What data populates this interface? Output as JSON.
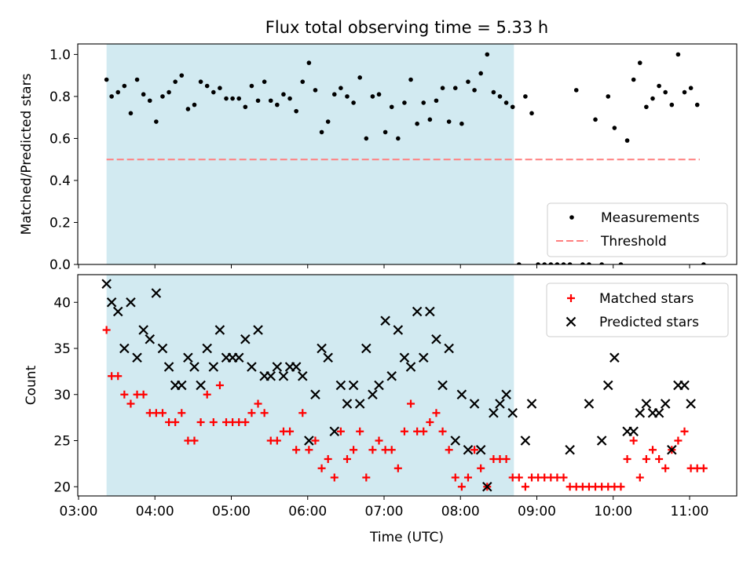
{
  "title": "Flux total observing time = 5.33 h",
  "colors": {
    "shade": "#add8e6",
    "measurement": "#000000",
    "threshold": "#ff7f7f",
    "matched": "#ff0000",
    "predicted": "#000000"
  },
  "chart_data": [
    {
      "type": "scatter",
      "ylabel": "Matched/Predicted stars",
      "ylim": [
        0,
        1.05
      ],
      "yticks": [
        0.0,
        0.2,
        0.4,
        0.6,
        0.8,
        1.0
      ],
      "ytick_labels": [
        "0.0",
        "0.2",
        "0.4",
        "0.6",
        "0.8",
        "1.0"
      ],
      "shaded_range": [
        "03:22",
        "08:42"
      ],
      "legend": {
        "placement": "lower right",
        "entries": [
          "Measurements",
          "Threshold"
        ]
      },
      "threshold": {
        "name": "Threshold",
        "value": 0.5,
        "x_range": [
          "03:22",
          "11:08"
        ]
      },
      "series": [
        {
          "name": "Measurements",
          "x": [
            "03:22",
            "03:26",
            "03:31",
            "03:36",
            "03:41",
            "03:46",
            "03:51",
            "03:56",
            "04:01",
            "04:06",
            "04:11",
            "04:16",
            "04:21",
            "04:26",
            "04:31",
            "04:36",
            "04:41",
            "04:46",
            "04:51",
            "04:56",
            "05:01",
            "05:06",
            "05:11",
            "05:16",
            "05:21",
            "05:26",
            "05:31",
            "05:36",
            "05:41",
            "05:46",
            "05:51",
            "05:56",
            "06:01",
            "06:06",
            "06:11",
            "06:16",
            "06:21",
            "06:26",
            "06:31",
            "06:36",
            "06:41",
            "06:46",
            "06:51",
            "06:56",
            "07:01",
            "07:06",
            "07:11",
            "07:16",
            "07:21",
            "07:26",
            "07:31",
            "07:36",
            "07:41",
            "07:46",
            "07:51",
            "07:56",
            "08:01",
            "08:06",
            "08:11",
            "08:16",
            "08:21",
            "08:26",
            "08:31",
            "08:36",
            "08:41",
            "08:46",
            "08:51",
            "08:56",
            "09:01",
            "09:06",
            "09:11",
            "09:16",
            "09:21",
            "09:26",
            "09:31",
            "09:36",
            "09:41",
            "09:46",
            "09:51",
            "09:56",
            "10:01",
            "10:06",
            "10:11",
            "10:16",
            "10:21",
            "10:26",
            "10:31",
            "10:36",
            "10:41",
            "10:46",
            "10:51",
            "10:56",
            "11:01",
            "11:06",
            "11:11"
          ],
          "y": [
            0.88,
            0.8,
            0.82,
            0.85,
            0.72,
            0.88,
            0.81,
            0.78,
            0.68,
            0.8,
            0.82,
            0.87,
            0.9,
            0.74,
            0.76,
            0.87,
            0.85,
            0.82,
            0.84,
            0.79,
            0.79,
            0.79,
            0.75,
            0.85,
            0.78,
            0.87,
            0.78,
            0.76,
            0.81,
            0.79,
            0.73,
            0.87,
            0.96,
            0.83,
            0.63,
            0.68,
            0.81,
            0.84,
            0.8,
            0.77,
            0.89,
            0.6,
            0.8,
            0.81,
            0.63,
            0.75,
            0.6,
            0.77,
            0.88,
            0.67,
            0.77,
            0.69,
            0.78,
            0.84,
            0.68,
            0.84,
            0.67,
            0.87,
            0.83,
            0.91,
            1.0,
            0.82,
            0.8,
            0.77,
            0.75,
            0.0,
            0.8,
            0.72,
            0.0,
            0.0,
            0.0,
            0.0,
            0.0,
            0.0,
            0.83,
            0.0,
            0.0,
            0.69,
            0.0,
            0.8,
            0.65,
            0.0,
            0.59,
            0.88,
            0.96,
            0.75,
            0.79,
            0.85,
            0.82,
            0.76,
            1.0,
            0.82,
            0.84,
            0.76,
            0.0
          ]
        }
      ]
    },
    {
      "type": "scatter",
      "xlabel": "Time (UTC)",
      "ylabel": "Count",
      "ylim": [
        19,
        43
      ],
      "yticks": [
        20,
        25,
        30,
        35,
        40
      ],
      "ytick_labels": [
        "20",
        "25",
        "30",
        "35",
        "40"
      ],
      "xticks": [
        "03:00",
        "04:00",
        "05:00",
        "06:00",
        "07:00",
        "08:00",
        "09:00",
        "10:00",
        "11:00"
      ],
      "shaded_range": [
        "03:22",
        "08:42"
      ],
      "legend": {
        "placement": "upper right",
        "entries": [
          "Matched stars",
          "Predicted stars"
        ]
      },
      "series": [
        {
          "name": "Matched stars",
          "x": [
            "03:22",
            "03:26",
            "03:31",
            "03:36",
            "03:41",
            "03:46",
            "03:51",
            "03:56",
            "04:01",
            "04:06",
            "04:11",
            "04:16",
            "04:21",
            "04:26",
            "04:31",
            "04:36",
            "04:41",
            "04:46",
            "04:51",
            "04:56",
            "05:01",
            "05:06",
            "05:11",
            "05:16",
            "05:21",
            "05:26",
            "05:31",
            "05:36",
            "05:41",
            "05:46",
            "05:51",
            "05:56",
            "06:01",
            "06:06",
            "06:11",
            "06:16",
            "06:21",
            "06:26",
            "06:31",
            "06:36",
            "06:41",
            "06:46",
            "06:51",
            "06:56",
            "07:01",
            "07:06",
            "07:11",
            "07:16",
            "07:21",
            "07:26",
            "07:31",
            "07:36",
            "07:41",
            "07:46",
            "07:51",
            "07:56",
            "08:01",
            "08:06",
            "08:11",
            "08:16",
            "08:21",
            "08:26",
            "08:31",
            "08:36",
            "08:41",
            "08:46",
            "08:51",
            "08:56",
            "09:01",
            "09:06",
            "09:11",
            "09:16",
            "09:21",
            "09:26",
            "09:31",
            "09:36",
            "09:41",
            "09:46",
            "09:51",
            "09:56",
            "10:01",
            "10:06",
            "10:11",
            "10:16",
            "10:21",
            "10:26",
            "10:31",
            "10:36",
            "10:41",
            "10:46",
            "10:51",
            "10:56",
            "11:01",
            "11:06",
            "11:11"
          ],
          "y": [
            37,
            32,
            32,
            30,
            29,
            30,
            30,
            28,
            28,
            28,
            27,
            27,
            28,
            25,
            25,
            27,
            30,
            27,
            31,
            27,
            27,
            27,
            27,
            28,
            29,
            28,
            25,
            25,
            26,
            26,
            24,
            28,
            24,
            25,
            22,
            23,
            21,
            26,
            23,
            24,
            26,
            21,
            24,
            25,
            24,
            24,
            22,
            26,
            29,
            26,
            26,
            27,
            28,
            26,
            24,
            21,
            20,
            21,
            24,
            22,
            20,
            23,
            23,
            23,
            21,
            21,
            20,
            21,
            21,
            21,
            21,
            21,
            21,
            20,
            20,
            20,
            20,
            20,
            20,
            20,
            20,
            20,
            23,
            25,
            21,
            23,
            24,
            23,
            22,
            24,
            25,
            26,
            22,
            22,
            22
          ]
        },
        {
          "name": "Predicted stars",
          "x": [
            "03:22",
            "03:26",
            "03:31",
            "03:36",
            "03:41",
            "03:46",
            "03:51",
            "03:56",
            "04:01",
            "04:06",
            "04:11",
            "04:16",
            "04:21",
            "04:26",
            "04:31",
            "04:36",
            "04:41",
            "04:46",
            "04:51",
            "04:56",
            "05:01",
            "05:06",
            "05:11",
            "05:16",
            "05:21",
            "05:26",
            "05:31",
            "05:36",
            "05:41",
            "05:46",
            "05:51",
            "05:56",
            "06:01",
            "06:06",
            "06:11",
            "06:16",
            "06:21",
            "06:26",
            "06:31",
            "06:36",
            "06:41",
            "06:46",
            "06:51",
            "06:56",
            "07:01",
            "07:06",
            "07:11",
            "07:16",
            "07:21",
            "07:26",
            "07:31",
            "07:36",
            "07:41",
            "07:46",
            "07:51",
            "07:56",
            "08:01",
            "08:06",
            "08:11",
            "08:16",
            "08:21",
            "08:26",
            "08:31",
            "08:36",
            "08:41",
            "08:51",
            "08:56",
            "09:26",
            "09:41",
            "09:51",
            "09:56",
            "10:01",
            "10:11",
            "10:16",
            "10:21",
            "10:26",
            "10:31",
            "10:36",
            "10:41",
            "10:46",
            "10:51",
            "10:56",
            "11:01"
          ],
          "y": [
            42,
            40,
            39,
            35,
            40,
            34,
            37,
            36,
            41,
            35,
            33,
            31,
            31,
            34,
            33,
            31,
            35,
            33,
            37,
            34,
            34,
            34,
            36,
            33,
            37,
            32,
            32,
            33,
            32,
            33,
            33,
            32,
            25,
            30,
            35,
            34,
            26,
            31,
            29,
            31,
            29,
            35,
            30,
            31,
            38,
            32,
            37,
            34,
            33,
            39,
            34,
            39,
            36,
            31,
            35,
            25,
            30,
            24,
            29,
            24,
            20,
            28,
            29,
            30,
            28,
            25,
            29,
            24,
            29,
            25,
            31,
            34,
            26,
            26,
            28,
            29,
            28,
            28,
            29,
            24,
            31,
            31,
            29
          ]
        }
      ]
    }
  ]
}
